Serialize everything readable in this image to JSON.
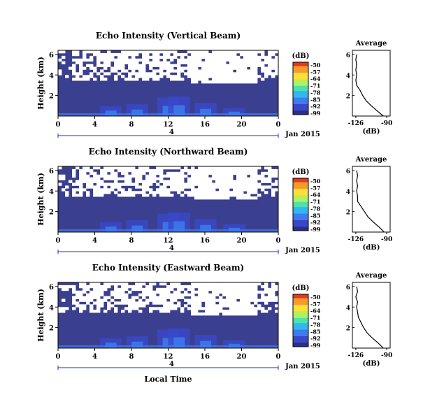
{
  "chart_data": [
    {
      "type": "heatmap",
      "title": "Echo Intensity (Vertical Beam)",
      "ylabel": "Height (km)",
      "x_ticks": [
        "0",
        "4",
        "8",
        "12",
        "16",
        "20",
        "0"
      ],
      "y_ticks": [
        "6",
        "4",
        "2"
      ],
      "colorbar_label": "(dB)",
      "colorbar_ticks": [
        "-50",
        "-57",
        "-64",
        "-71",
        "-78",
        "-85",
        "-92",
        "-99"
      ],
      "date_label": "Jan 2015",
      "date_axis_tick": "4",
      "side_title": "Average",
      "side_xlabel": "(dB)",
      "side_x_ticks": [
        "-126",
        "-90"
      ],
      "side_y_ticks": [
        "6",
        "4",
        "2"
      ],
      "profile": {
        "height_km": [
          0.0,
          0.5,
          1.0,
          1.5,
          2.0,
          2.5,
          3.0,
          3.5,
          4.0,
          4.5,
          5.0,
          5.5,
          6.0
        ],
        "db": [
          -94,
          -101,
          -108,
          -114,
          -118,
          -121,
          -125,
          -126,
          -125,
          -126,
          -125,
          -126,
          -125
        ]
      }
    },
    {
      "type": "heatmap",
      "title": "Echo Intensity (Northward Beam)",
      "ylabel": "Height (km)",
      "x_ticks": [
        "0",
        "4",
        "8",
        "12",
        "16",
        "20",
        "0"
      ],
      "y_ticks": [
        "6",
        "4",
        "2"
      ],
      "colorbar_label": "(dB)",
      "colorbar_ticks": [
        "-50",
        "-57",
        "-64",
        "-71",
        "-78",
        "-85",
        "-92",
        "-99"
      ],
      "date_label": "Jan 2015",
      "date_axis_tick": "4",
      "side_title": "Average",
      "side_xlabel": "(dB)",
      "side_x_ticks": [
        "-126",
        "-90"
      ],
      "side_y_ticks": [
        "6",
        "4",
        "2"
      ],
      "profile": {
        "height_km": [
          0.0,
          0.5,
          1.0,
          1.5,
          2.0,
          2.5,
          3.0,
          3.5,
          4.0,
          4.5,
          5.0,
          5.5,
          6.0
        ],
        "db": [
          -93,
          -99,
          -106,
          -112,
          -116,
          -120,
          -124,
          -124,
          -125,
          -124,
          -125,
          -124,
          -125
        ]
      }
    },
    {
      "type": "heatmap",
      "title": "Echo Intensity (Eastward Beam)",
      "ylabel": "Height (km)",
      "x_ticks": [
        "0",
        "4",
        "8",
        "12",
        "16",
        "20",
        "0"
      ],
      "y_ticks": [
        "6",
        "4",
        "2"
      ],
      "colorbar_label": "(dB)",
      "colorbar_ticks": [
        "-50",
        "-57",
        "-64",
        "-71",
        "-78",
        "-85",
        "-92",
        "-99"
      ],
      "date_label": "Jan 2015",
      "date_axis_tick": "4",
      "side_title": "Average",
      "side_xlabel": "(dB)",
      "side_x_ticks": [
        "-126",
        "-90"
      ],
      "side_y_ticks": [
        "6",
        "4",
        "2"
      ],
      "xlabel": "Local Time",
      "profile": {
        "height_km": [
          0.0,
          0.5,
          1.0,
          1.5,
          2.0,
          2.5,
          3.0,
          3.5,
          4.0,
          4.5,
          5.0,
          5.5,
          6.0
        ],
        "db": [
          -94,
          -100,
          -107,
          -113,
          -117,
          -120,
          -123,
          -124,
          -125,
          -124,
          -126,
          -124,
          -125
        ]
      }
    }
  ],
  "colors": {
    "background_echo": "#3b3f8f",
    "missing": "#ffffff",
    "colormap": [
      "#2b2f8a",
      "#3a48c8",
      "#3c7df0",
      "#31b8ee",
      "#4fe0b0",
      "#b4f05a",
      "#fbe13a",
      "#f79a2a",
      "#e8361e"
    ]
  }
}
